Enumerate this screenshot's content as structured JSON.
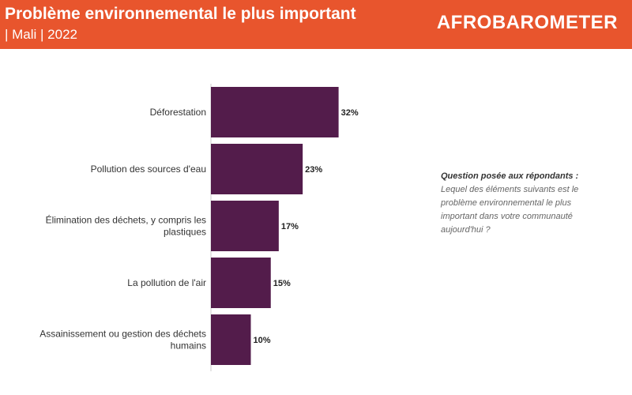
{
  "header": {
    "title": "Problème environnemental le plus important",
    "subtitle": "| Mali | 2022",
    "logo_text": "AFROBAROMETER",
    "background_color": "#e8552d"
  },
  "question": {
    "heading": "Question posée aux répondants :",
    "text": "Lequel des éléments suivants est le problème environnemental le plus important dans votre communauté aujourd'hui ?"
  },
  "chart_data": {
    "type": "bar",
    "orientation": "horizontal",
    "categories": [
      [
        "Déforestation"
      ],
      [
        "Pollution des sources d'eau"
      ],
      [
        "Élimination des déchets, y compris les",
        "plastiques"
      ],
      [
        "La pollution de l'air"
      ],
      [
        "Assainissement ou gestion des déchets",
        "humains"
      ]
    ],
    "values": [
      32,
      23,
      17,
      15,
      10
    ],
    "value_labels": [
      "32%",
      "23%",
      "17%",
      "15%",
      "10%"
    ],
    "bar_color": "#531c4b",
    "grid": false
  }
}
